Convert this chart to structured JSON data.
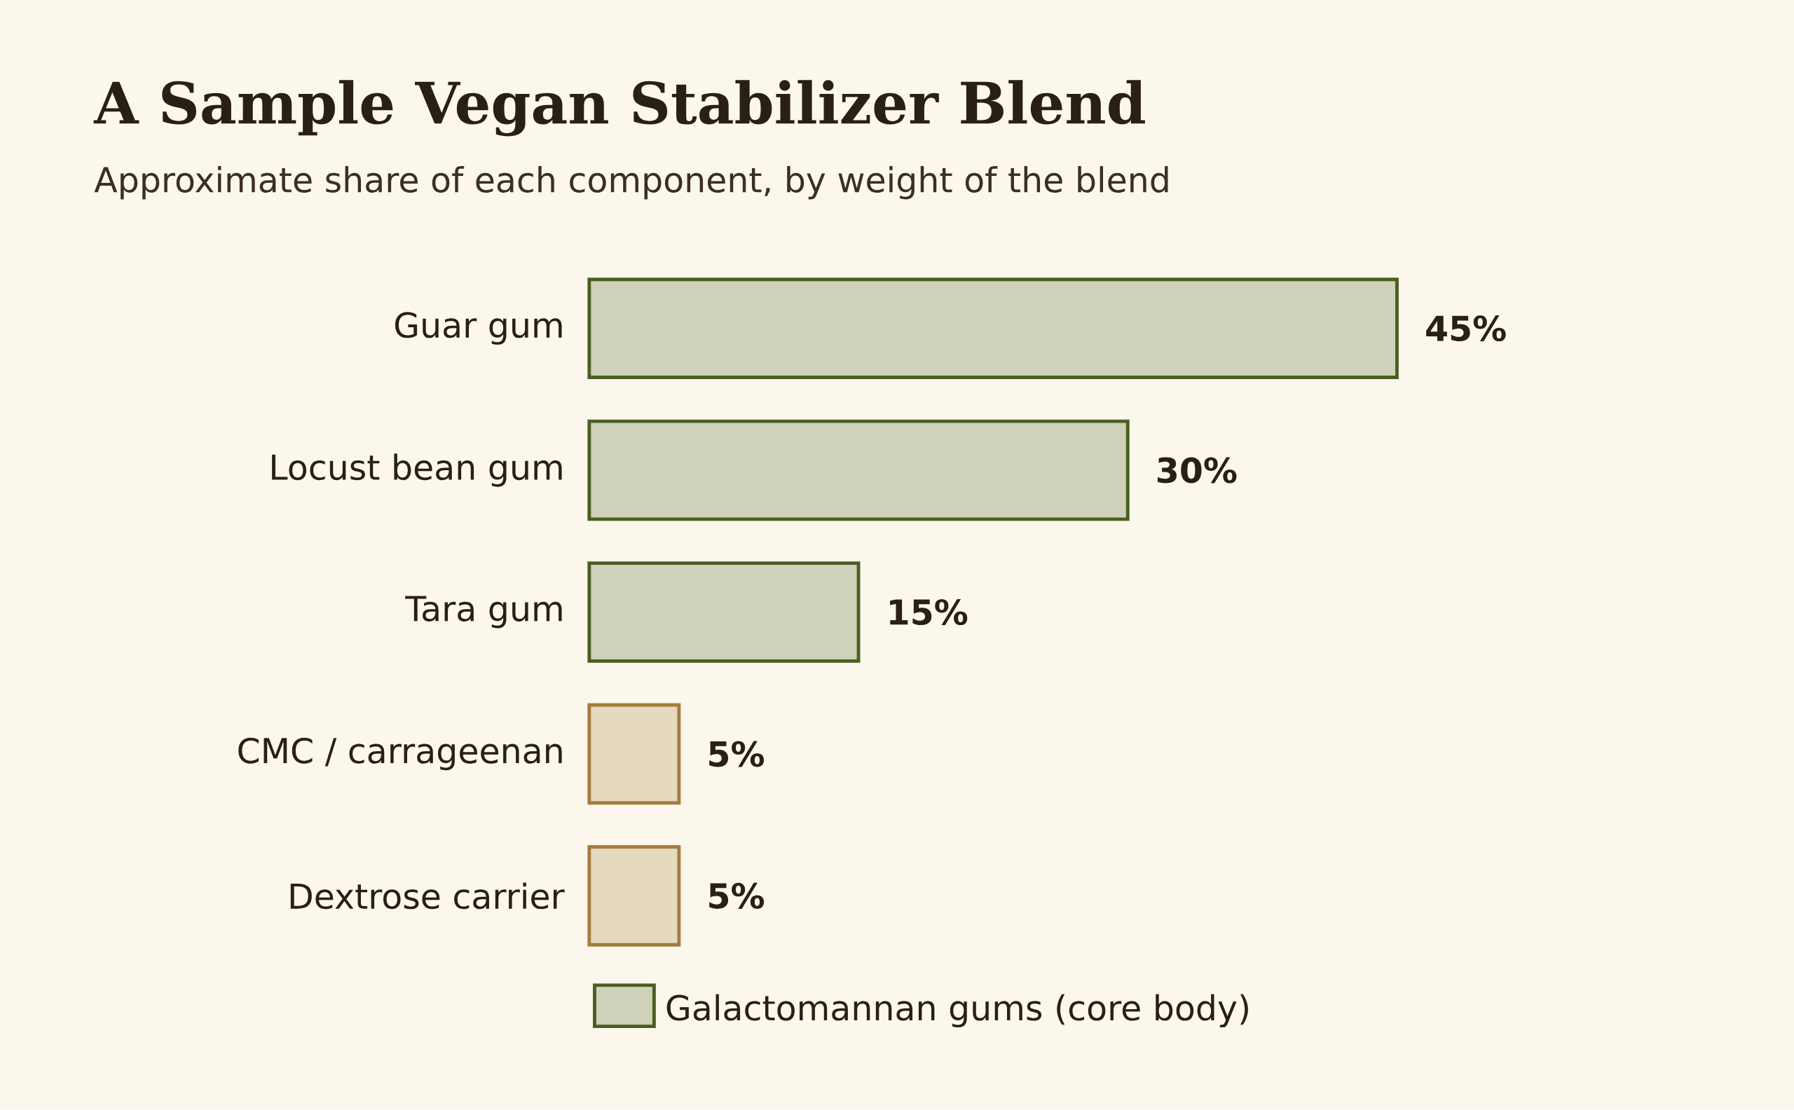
{
  "chart_data": {
    "type": "bar",
    "orientation": "horizontal",
    "title": "A Sample Vegan Stabilizer Blend",
    "subtitle": "Approximate share of each component, by weight of the blend",
    "categories": [
      "Guar gum",
      "Locust bean gum",
      "Tara gum",
      "CMC / carrageenan",
      "Dextrose carrier"
    ],
    "series": [
      {
        "name": "Galactomannan gums (core body)",
        "color": "#4b5e22",
        "values": [
          45,
          30,
          15,
          null,
          null
        ],
        "value_labels": [
          "45%",
          "30%",
          "15%",
          null,
          null
        ]
      },
      {
        "colors": [
          null,
          null,
          null,
          "#a47d3c",
          "#a47d3c"
        ],
        "values": [
          null,
          null,
          null,
          5,
          5
        ],
        "value_labels": [
          null,
          null,
          null,
          "5%",
          "5%"
        ]
      }
    ],
    "legend": "bottom"
  }
}
